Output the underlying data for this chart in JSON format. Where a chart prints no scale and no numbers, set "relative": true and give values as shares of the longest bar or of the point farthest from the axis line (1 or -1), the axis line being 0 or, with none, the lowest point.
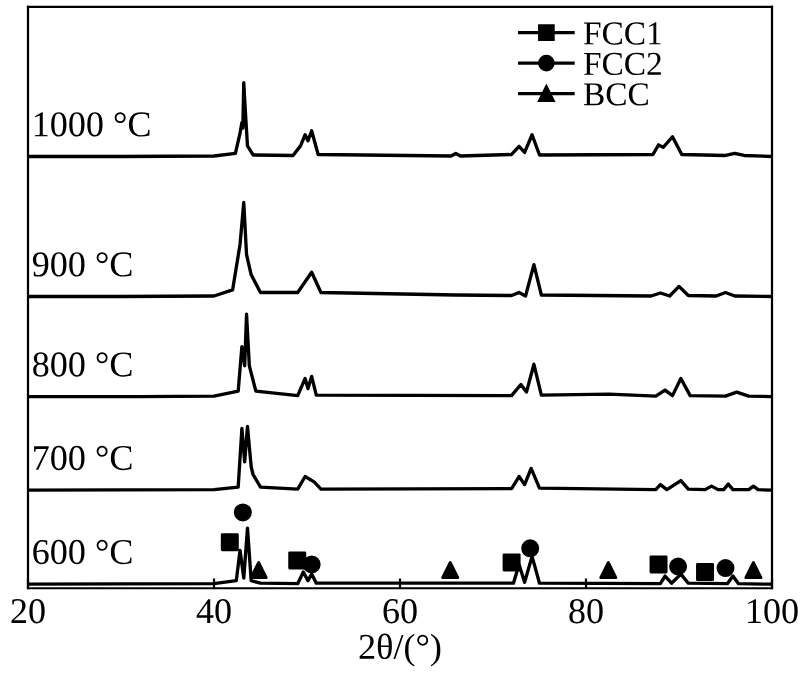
{
  "chart_data": {
    "type": "line",
    "relative": true,
    "xlabel": "2θ/(°)",
    "xlim": [
      20,
      100
    ],
    "xticks": [
      20,
      40,
      60,
      80,
      100
    ],
    "tick_labels": "x",
    "grid": false,
    "legend": "top right",
    "marker": "none",
    "line_style": "solid",
    "series": [
      {
        "name": "1000 °C",
        "color": "#000000",
        "x": [
          20,
          30,
          40,
          42.3,
          42.8,
          43.0,
          43.1,
          43.2,
          43.35,
          43.6,
          44.2,
          48.5,
          49.3,
          49.8,
          50.1,
          50.5,
          51.2,
          65.5,
          66,
          66.5,
          72,
          72.8,
          73.4,
          74.2,
          75,
          87.2,
          87.8,
          88.3,
          89.3,
          90.3,
          95,
          96,
          97,
          100
        ],
        "values": [
          0.854,
          0.854,
          0.855,
          0.86,
          0.9,
          0.921,
          0.91,
          1.0,
          0.95,
          0.875,
          0.857,
          0.856,
          0.875,
          0.897,
          0.885,
          0.905,
          0.858,
          0.855,
          0.86,
          0.855,
          0.858,
          0.874,
          0.862,
          0.897,
          0.857,
          0.858,
          0.877,
          0.872,
          0.893,
          0.858,
          0.856,
          0.86,
          0.856,
          0.854
        ]
      },
      {
        "name": "900 °C",
        "color": "#000000",
        "x": [
          20,
          30,
          40,
          42.0,
          42.8,
          43.2,
          43.5,
          44.0,
          45,
          49,
          50.5,
          51.5,
          66,
          72,
          72.8,
          73.5,
          74.4,
          75.2,
          87,
          88,
          89,
          90,
          91,
          94,
          95,
          96,
          100
        ],
        "values": [
          0.577,
          0.577,
          0.578,
          0.59,
          0.68,
          0.763,
          0.66,
          0.62,
          0.585,
          0.585,
          0.625,
          0.585,
          0.58,
          0.579,
          0.585,
          0.578,
          0.64,
          0.58,
          0.578,
          0.584,
          0.578,
          0.597,
          0.579,
          0.578,
          0.585,
          0.578,
          0.577
        ]
      },
      {
        "name": "800 °C",
        "color": "#000000",
        "x": [
          20,
          32,
          40,
          42.6,
          43.0,
          43.3,
          43.5,
          43.8,
          44.5,
          49,
          49.8,
          50.1,
          50.5,
          51,
          72,
          73,
          73.6,
          74.4,
          75.2,
          82.5,
          87.5,
          88.5,
          89.3,
          90.2,
          91.2,
          95,
          96.2,
          97.5,
          100
        ],
        "values": [
          0.379,
          0.379,
          0.38,
          0.39,
          0.478,
          0.44,
          0.542,
          0.44,
          0.39,
          0.381,
          0.415,
          0.395,
          0.419,
          0.382,
          0.381,
          0.403,
          0.388,
          0.443,
          0.382,
          0.384,
          0.38,
          0.392,
          0.381,
          0.415,
          0.381,
          0.38,
          0.388,
          0.38,
          0.379
        ]
      },
      {
        "name": "700 °C",
        "color": "#000000",
        "x": [
          20,
          40,
          42.6,
          43.0,
          43.3,
          43.6,
          44.0,
          44.2,
          45,
          49,
          49.8,
          50.8,
          51.5,
          72,
          72.8,
          73.4,
          74.1,
          75,
          87.5,
          88,
          88.7,
          90.2,
          91,
          92.8,
          93.5,
          94.2,
          94.8,
          95.3,
          95.8,
          97.5,
          98,
          98.5,
          100
        ],
        "values": [
          0.194,
          0.195,
          0.2,
          0.316,
          0.25,
          0.32,
          0.24,
          0.225,
          0.2,
          0.196,
          0.221,
          0.21,
          0.196,
          0.197,
          0.221,
          0.205,
          0.237,
          0.198,
          0.195,
          0.205,
          0.195,
          0.213,
          0.196,
          0.195,
          0.202,
          0.195,
          0.195,
          0.206,
          0.195,
          0.195,
          0.202,
          0.195,
          0.194
        ]
      },
      {
        "name": "600 °C",
        "color": "#000000",
        "x": [
          20,
          40,
          42.4,
          42.8,
          43.2,
          43.6,
          44.0,
          45,
          49,
          49.6,
          50.1,
          50.5,
          51,
          72.2,
          72.8,
          73.4,
          74.2,
          75,
          88,
          88.5,
          89.2,
          90.2,
          91,
          95.2,
          95.8,
          96.4,
          100
        ],
        "values": [
          0.008,
          0.009,
          0.015,
          0.075,
          0.02,
          0.119,
          0.015,
          0.01,
          0.009,
          0.032,
          0.015,
          0.028,
          0.01,
          0.01,
          0.047,
          0.012,
          0.063,
          0.01,
          0.009,
          0.024,
          0.01,
          0.028,
          0.01,
          0.009,
          0.024,
          0.009,
          0.008
        ]
      },
      {
        "name": "FCC1",
        "type": "scatter",
        "marker": "square",
        "color": "#000000",
        "x": [
          41.7,
          48.95,
          72.0,
          87.8,
          92.8
        ],
        "values": [
          0.091,
          0.055,
          0.051,
          0.047,
          0.032
        ]
      },
      {
        "name": "FCC2",
        "type": "scatter",
        "marker": "circle",
        "color": "#000000",
        "x": [
          43.1,
          50.5,
          74.0,
          89.9,
          95.0
        ],
        "values": [
          0.15,
          0.047,
          0.079,
          0.043,
          0.04
        ]
      },
      {
        "name": "BCC",
        "type": "scatter",
        "marker": "triangle",
        "color": "#000000",
        "x": [
          44.8,
          65.4,
          82.4,
          98.0
        ],
        "values": [
          0.036,
          0.036,
          0.036,
          0.036
        ]
      }
    ]
  }
}
